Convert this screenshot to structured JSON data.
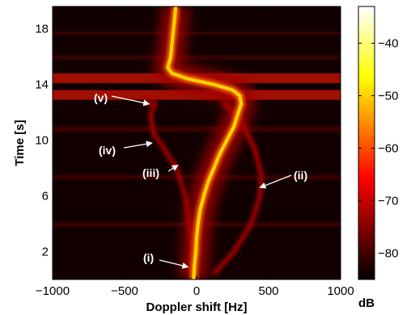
{
  "chart_data": {
    "type": "heatmap",
    "title": "",
    "xlabel": "Doppler shift [Hz]",
    "ylabel": "Time [s]",
    "xlim": [
      -1000,
      1000
    ],
    "ylim": [
      0,
      19.6
    ],
    "x_ticks": [
      -1000,
      -500,
      0,
      500,
      1000
    ],
    "y_ticks": [
      2,
      6,
      10,
      14,
      18
    ],
    "colorbar": {
      "label": "dB",
      "range": [
        -85,
        -33
      ],
      "ticks": [
        -40,
        -50,
        -60,
        -70,
        -80
      ],
      "colormap": "hot"
    },
    "main_track": {
      "name": "",
      "time_s": [
        0,
        1,
        2,
        3,
        4,
        5,
        6,
        7,
        8,
        9,
        10,
        11,
        12,
        12.6,
        13.2,
        13.6,
        14,
        14.4,
        14.8,
        15.2,
        16,
        17,
        18,
        19,
        19.6
      ],
      "doppler_hz": [
        -20,
        -15,
        -5,
        0,
        10,
        25,
        50,
        80,
        120,
        160,
        210,
        260,
        290,
        310,
        300,
        250,
        120,
        -60,
        -170,
        -200,
        -180,
        -170,
        -160,
        -150,
        -145
      ]
    },
    "banded_intervals_s": [
      [
        12.9,
        13.6
      ],
      [
        14.1,
        14.8
      ],
      [
        10.6,
        11.0
      ],
      [
        7.2,
        7.5
      ],
      [
        15.8,
        16.1
      ],
      [
        17.6,
        17.8
      ],
      [
        3.8,
        4.1
      ]
    ],
    "annotations": [
      {
        "label": "(i)",
        "arrow_to": {
          "doppler_hz": -60,
          "time_s": 0.9
        }
      },
      {
        "label": "(ii)",
        "arrow_to": {
          "doppler_hz": 440,
          "time_s": 6.6
        }
      },
      {
        "label": "(iii)",
        "arrow_to": {
          "doppler_hz": -130,
          "time_s": 8.2
        }
      },
      {
        "label": "(iv)",
        "arrow_to": {
          "doppler_hz": -310,
          "time_s": 9.8
        }
      },
      {
        "label": "(v)",
        "arrow_to": {
          "doppler_hz": -330,
          "time_s": 12.6
        }
      }
    ]
  }
}
